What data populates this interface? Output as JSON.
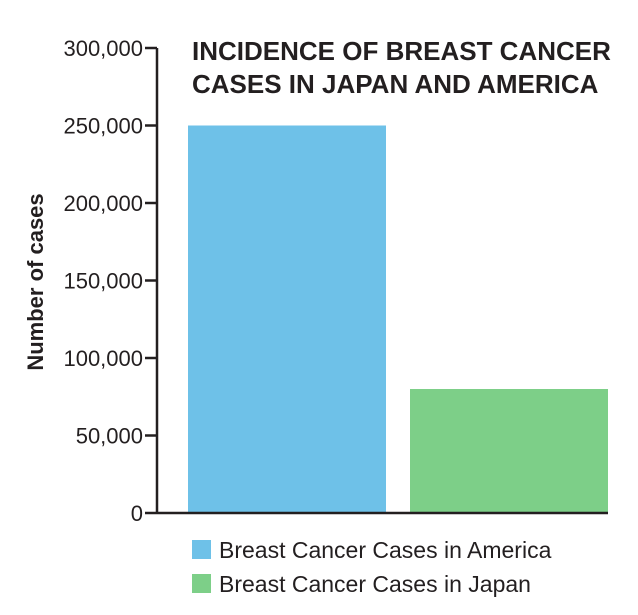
{
  "chart_data": {
    "type": "bar",
    "title_lines": [
      "INCIDENCE OF BREAST CANCER",
      "CASES IN JAPAN AND AMERICA"
    ],
    "xlabel": "",
    "ylabel": "Number of cases",
    "ylim": [
      0,
      300000
    ],
    "yticks": [
      0,
      50000,
      100000,
      150000,
      200000,
      250000,
      300000
    ],
    "ytick_labels": [
      "0",
      "50,000",
      "100,000",
      "150,000",
      "200,000",
      "250,000",
      "300,000"
    ],
    "grid": false,
    "legend_position": "bottom",
    "series": [
      {
        "name": "Breast Cancer Cases in America",
        "value": 250000,
        "color": "#6ec1e8"
      },
      {
        "name": "Breast Cancer Cases in Japan",
        "value": 80000,
        "color": "#7dcf88"
      }
    ],
    "axis_color": "#231f20"
  }
}
